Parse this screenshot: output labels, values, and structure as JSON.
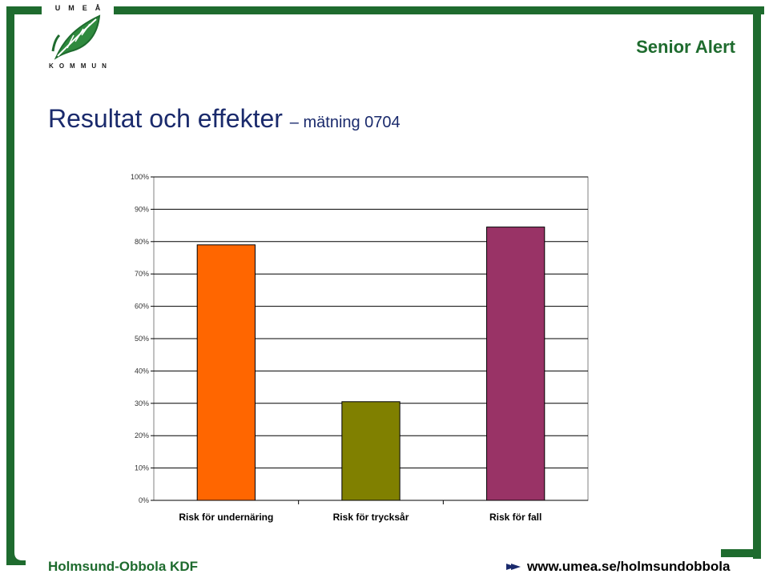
{
  "header": {
    "brand": "Senior Alert"
  },
  "logo": {
    "top_text": "UMEÅ",
    "bottom_text": "KOMMUN"
  },
  "slide": {
    "title": "Resultat och effekter",
    "subtitle": "– mätning 0704"
  },
  "footer": {
    "left": "Holmsund-Obbola KDF",
    "right": "www.umea.se/holmsundobbola"
  },
  "colors": {
    "frame": "#1e6b2e",
    "title": "#1a2a6c"
  },
  "chart_data": {
    "type": "bar",
    "categories": [
      "Risk för undernäring",
      "Risk för trycksår",
      "Risk för fall"
    ],
    "values": [
      79,
      30.5,
      84.5
    ],
    "bar_colors": [
      "#ff6600",
      "#808000",
      "#993366"
    ],
    "yticks": [
      "0%",
      "10%",
      "20%",
      "30%",
      "40%",
      "50%",
      "60%",
      "70%",
      "80%",
      "90%",
      "100%"
    ],
    "ylim": [
      0,
      100
    ],
    "grid": true,
    "legend": "none"
  }
}
